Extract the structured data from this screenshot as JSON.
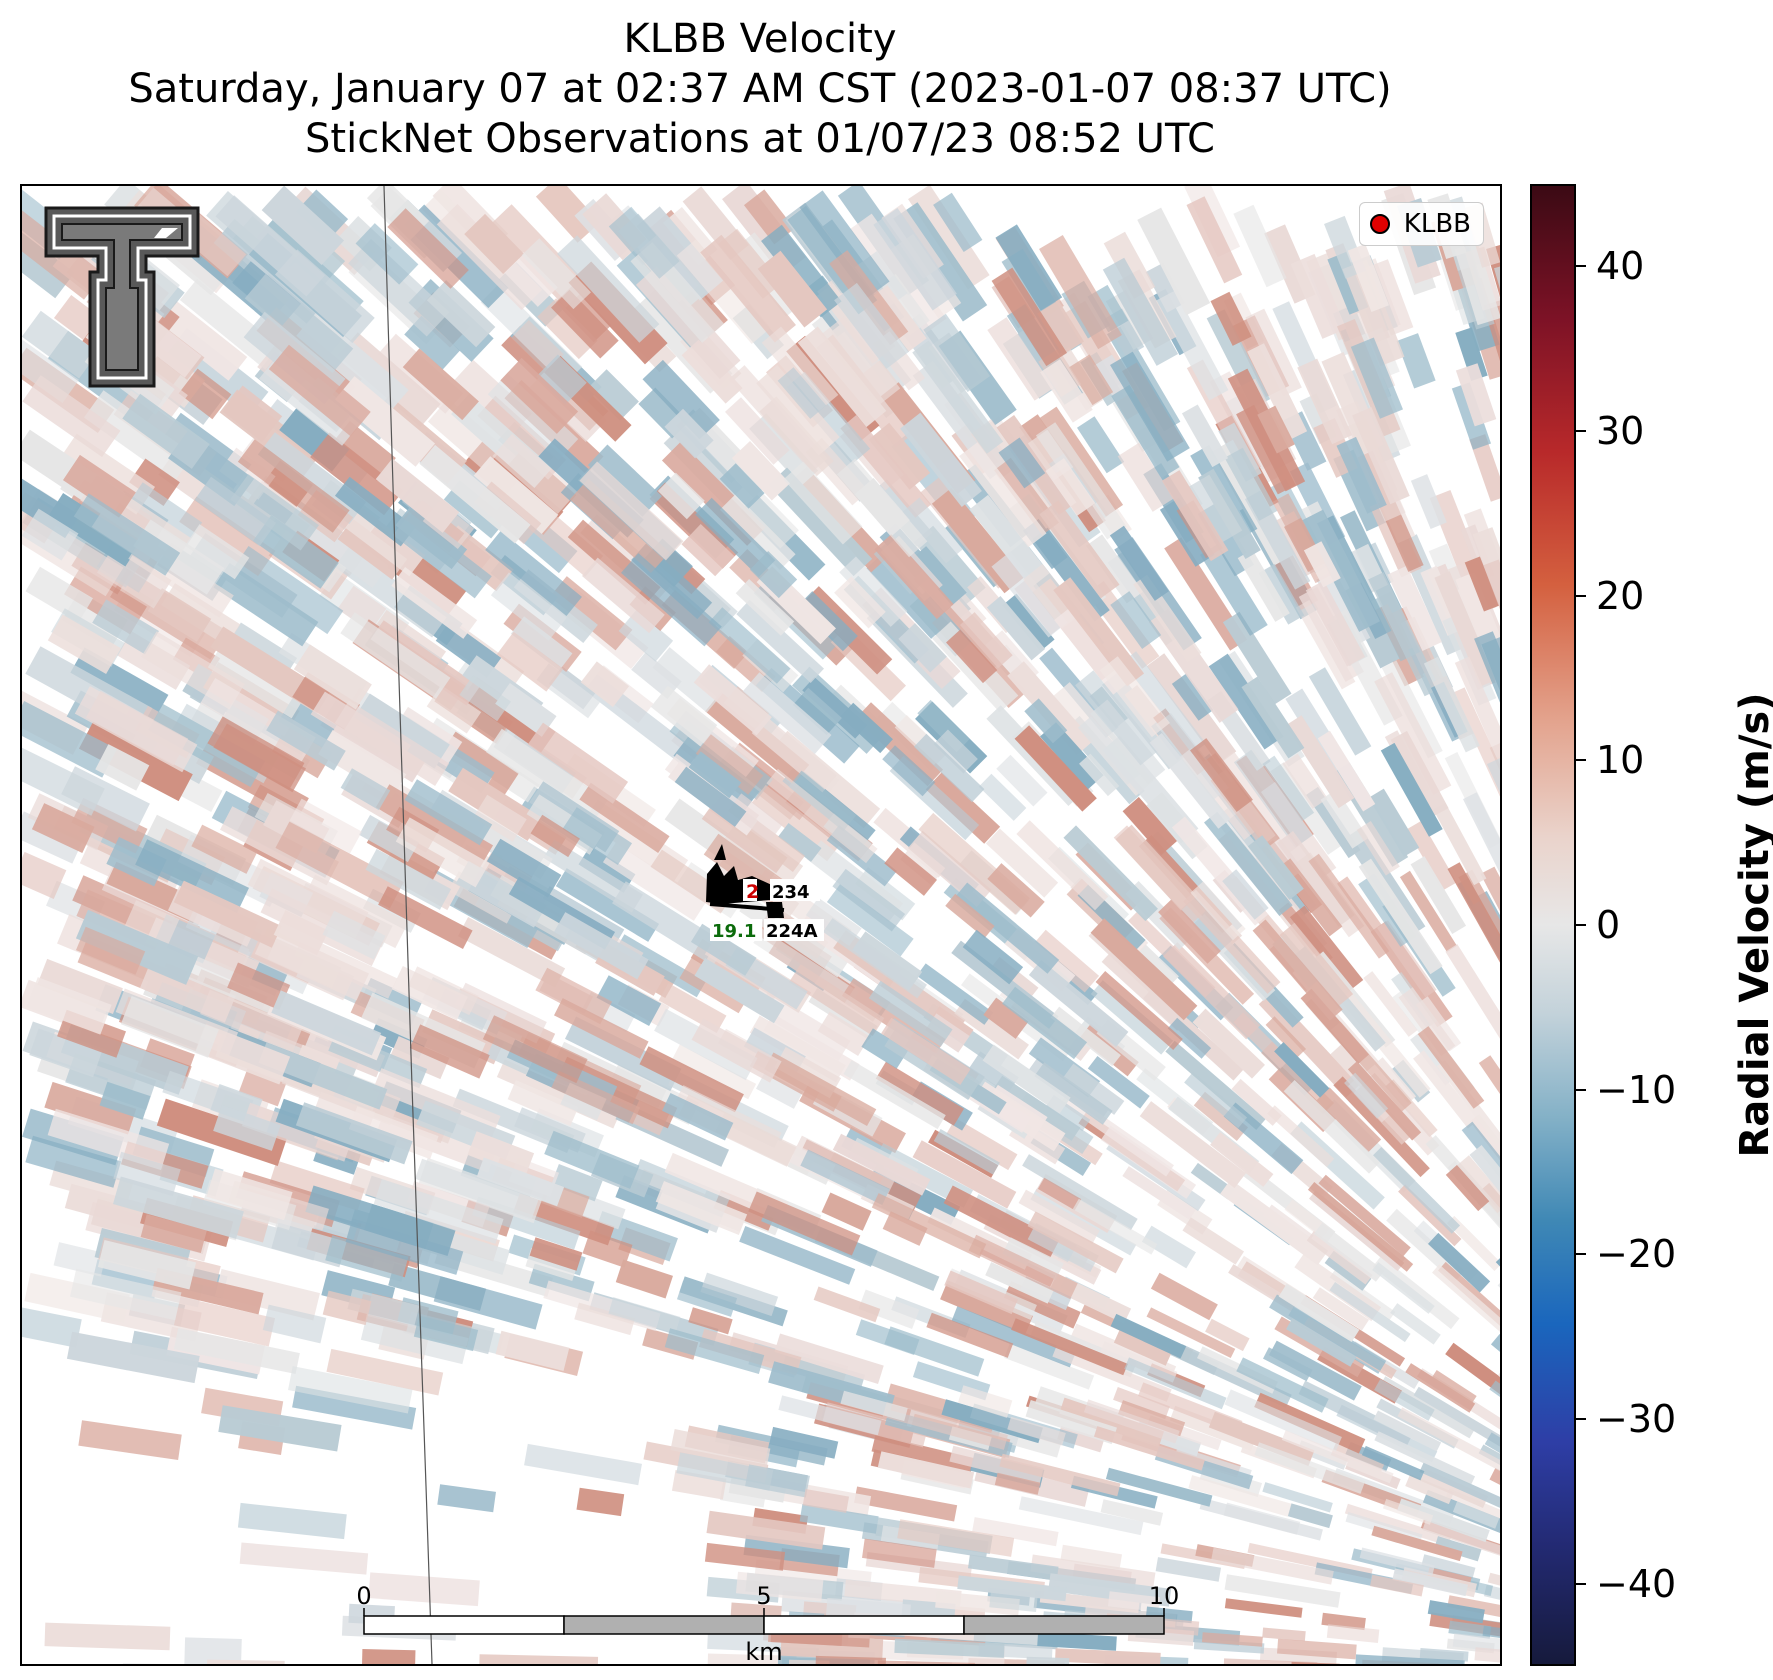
{
  "title": {
    "line1": "KLBB Velocity",
    "line2": "Saturday, January 07 at 02:37 AM CST (2023-01-07 08:37 UTC)",
    "line3": "StickNet Observations at 01/07/23 08:52 UTC"
  },
  "legend": {
    "label": "KLBB",
    "marker_color": "#e00000"
  },
  "stations": [
    {
      "id": "234",
      "value": "2",
      "value_color": "#cc0000"
    },
    {
      "id": "224A",
      "value": "19.1",
      "value_color": "#0b6b0b"
    }
  ],
  "scalebar": {
    "ticks": [
      "0",
      "5",
      "10"
    ],
    "unit": "km"
  },
  "colorbar": {
    "label": "Radial Velocity (m/s)",
    "ticks": [
      "40",
      "30",
      "20",
      "10",
      "0",
      "−10",
      "−20",
      "−30",
      "−40"
    ],
    "range": [
      -45,
      45
    ]
  },
  "logo": "texas-tech-double-t-logo"
}
